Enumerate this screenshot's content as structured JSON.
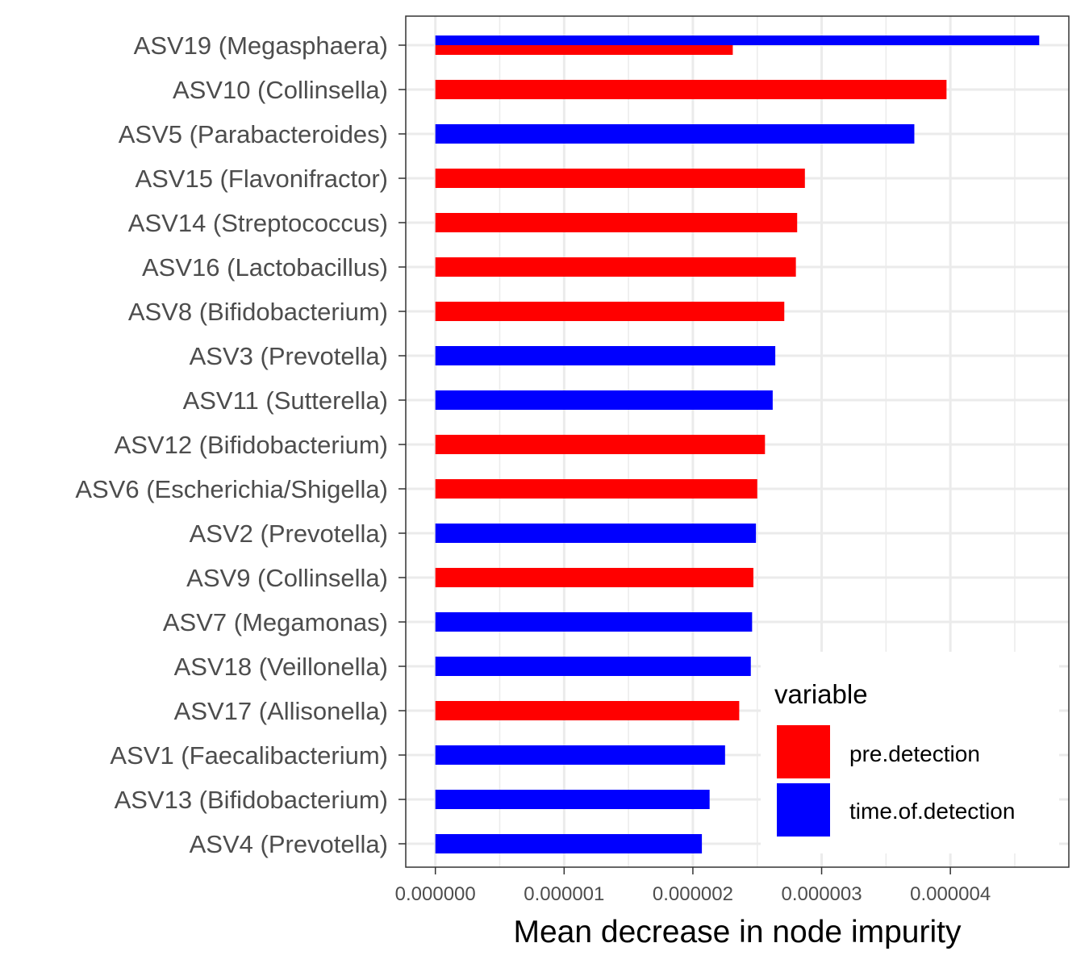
{
  "chart_data": {
    "type": "bar",
    "orientation": "horizontal",
    "xlabel": "Mean decrease in node impurity",
    "ylabel": "",
    "xlim": [
      -2.3e-07,
      4.92e-06
    ],
    "x_ticks": [
      0,
      1e-06,
      2e-06,
      3e-06,
      4e-06
    ],
    "x_tick_labels": [
      "0.000000",
      "0.000001",
      "0.000002",
      "0.000003",
      "0.000004"
    ],
    "grid": true,
    "categories": [
      "ASV19 (Megasphaera)",
      "ASV10 (Collinsella)",
      "ASV5 (Parabacteroides)",
      "ASV15 (Flavonifractor)",
      "ASV14 (Streptococcus)",
      "ASV16 (Lactobacillus)",
      "ASV8 (Bifidobacterium)",
      "ASV3 (Prevotella)",
      "ASV11 (Sutterella)",
      "ASV12 (Bifidobacterium)",
      "ASV6 (Escherichia/Shigella)",
      "ASV2 (Prevotella)",
      "ASV9 (Collinsella)",
      "ASV7 (Megamonas)",
      "ASV18 (Veillonella)",
      "ASV17 (Allisonella)",
      "ASV1 (Faecalibacterium)",
      "ASV13 (Bifidobacterium)",
      "ASV4 (Prevotella)"
    ],
    "series": [
      {
        "name": "pre.detection",
        "color": "#ff0000",
        "values": [
          2.31e-06,
          3.97e-06,
          null,
          2.87e-06,
          2.81e-06,
          2.8e-06,
          2.71e-06,
          null,
          null,
          2.56e-06,
          2.5e-06,
          null,
          2.47e-06,
          null,
          null,
          2.36e-06,
          null,
          null,
          null
        ]
      },
      {
        "name": "time.of.detection",
        "color": "#0000ff",
        "values": [
          4.69e-06,
          null,
          3.72e-06,
          null,
          null,
          null,
          null,
          2.64e-06,
          2.62e-06,
          null,
          null,
          2.49e-06,
          null,
          2.46e-06,
          2.45e-06,
          null,
          2.25e-06,
          2.13e-06,
          2.07e-06
        ]
      }
    ],
    "legend": {
      "title": "variable",
      "position": "bottom-right-inside",
      "entries": [
        "pre.detection",
        "time.of.detection"
      ]
    }
  }
}
